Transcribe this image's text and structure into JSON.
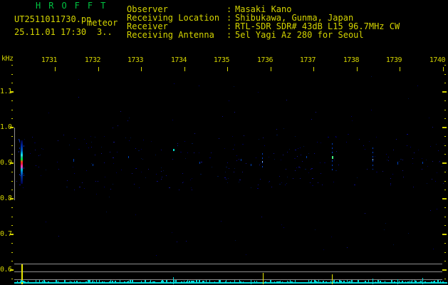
{
  "header": {
    "title": "HROFFT",
    "filename": "UT2511011730.pn",
    "overlay_label": "meteor",
    "datetime": "25.11.01 17:30",
    "counter": "3..",
    "separator": ":",
    "fields": [
      {
        "label": "Observer",
        "value": "Masaki Kano"
      },
      {
        "label": "Receiving Location",
        "value": "Shibukawa, Gunma, Japan"
      },
      {
        "label": "Receiver",
        "value": "RTL-SDR SDR# 43dB L15 96.7MHz CW"
      },
      {
        "label": "Receiving Antenna",
        "value": "5el Yagi Az 280 for Seoul"
      }
    ]
  },
  "colors": {
    "text_yellow": "#d4d400",
    "title_green": "#00c341",
    "gray_line": "#8f8f8f",
    "trace_cyan": "#00d8d8",
    "spike_yellow": "#e6e600",
    "faint_echo_blue": "#0046c8"
  },
  "chart_data": {
    "type": "heatmap",
    "subtype": "radio-meteor-spectrogram",
    "title": "HROFFT 10-minute spectrogram",
    "ylabel": "kHz",
    "x_axis": {
      "tick_labels": [
        "1731",
        "1732",
        "1733",
        "1734",
        "1735",
        "1736",
        "1737",
        "1738",
        "1739",
        "1740"
      ],
      "unit": "UT hhmm",
      "range_minutes_after_1730": [
        0,
        10
      ]
    },
    "y_axis": {
      "tick_labels": [
        "1.1",
        "1.0",
        "0.9",
        "0.8",
        "0.7",
        "0.6"
      ],
      "tick_values": [
        1.1,
        1.0,
        0.9,
        0.8,
        0.7,
        0.6
      ],
      "unit": "kHz",
      "range": [
        0.575,
        1.175
      ]
    },
    "marker_band_khz": [
      0.8,
      1.0
    ],
    "level_gridline_count": 3,
    "echoes": [
      {
        "t": 0.22,
        "f_hi": 0.965,
        "f_lo": 0.842,
        "style": "strong"
      },
      {
        "t": 1.43,
        "f_hi": 0.912,
        "f_lo": 0.904,
        "style": "faint"
      },
      {
        "t": 1.88,
        "f_hi": 0.898,
        "f_lo": 0.892,
        "style": "faint"
      },
      {
        "t": 2.7,
        "f_hi": 0.92,
        "f_lo": 0.914,
        "style": "faint"
      },
      {
        "t": 3.74,
        "f_hi": 0.941,
        "f_lo": 0.934,
        "style": "dot"
      },
      {
        "t": 4.36,
        "f_hi": 0.904,
        "f_lo": 0.898,
        "style": "faint"
      },
      {
        "t": 5.31,
        "f_hi": 0.912,
        "f_lo": 0.906,
        "style": "faint"
      },
      {
        "t": 5.55,
        "f_hi": 0.898,
        "f_lo": 0.892,
        "style": "faint"
      },
      {
        "t": 5.81,
        "f_hi": 0.928,
        "f_lo": 0.886,
        "style": "column"
      },
      {
        "t": 6.83,
        "f_hi": 0.92,
        "f_lo": 0.914,
        "style": "faint"
      },
      {
        "t": 7.43,
        "f_hi": 0.956,
        "f_lo": 0.878,
        "style": "column-green"
      },
      {
        "t": 8.37,
        "f_hi": 0.944,
        "f_lo": 0.882,
        "style": "column"
      },
      {
        "t": 8.95,
        "f_hi": 0.904,
        "f_lo": 0.896,
        "style": "faint"
      },
      {
        "t": 9.53,
        "f_hi": 0.904,
        "f_lo": 0.898,
        "style": "faint"
      }
    ],
    "level_spikes": [
      {
        "t": 0.22,
        "height": 1.0,
        "color": "yellow"
      },
      {
        "t": 5.82,
        "height": 0.54,
        "color": "yellow"
      },
      {
        "t": 7.43,
        "height": 0.46,
        "color": "yellow"
      },
      {
        "t": 3.74,
        "height": 0.32,
        "color": "cyan"
      },
      {
        "t": 5.55,
        "height": 0.15,
        "color": "cyan"
      },
      {
        "t": 8.37,
        "height": 0.25,
        "color": "cyan"
      },
      {
        "t": 8.95,
        "height": 0.18,
        "color": "cyan"
      },
      {
        "t": 9.53,
        "height": 0.28,
        "color": "cyan"
      }
    ]
  }
}
